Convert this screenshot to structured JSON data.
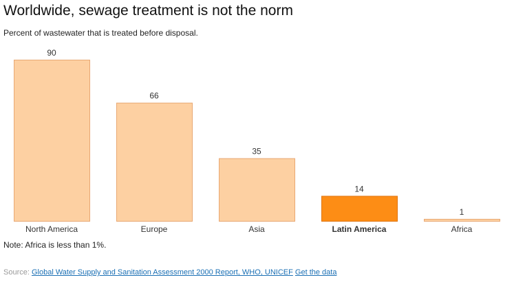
{
  "title": "Worldwide, sewage treatment is not the norm",
  "subtitle": "Percent of wastewater that is treated before disposal.",
  "note": "Note: Africa is less than 1%.",
  "source": {
    "prefix": "Source: ",
    "link_label": "Global Water Supply and Sanitation Assessment 2000 Report, WHO, UNICEF",
    "data_link_label": "Get the data"
  },
  "colors": {
    "bar_default": "#fdd0a2",
    "bar_default_stroke": "#e8a873",
    "bar_highlight": "#fd8d15",
    "bar_highlight_stroke": "#e07410",
    "link": "#1a6fb4"
  },
  "chart_data": {
    "type": "bar",
    "categories": [
      "North America",
      "Europe",
      "Asia",
      "Latin America",
      "Africa"
    ],
    "values": [
      90,
      66,
      35,
      14,
      1
    ],
    "value_labels": [
      "90",
      "66",
      "35",
      "14",
      "1"
    ],
    "highlight": "Latin America",
    "title": "Worldwide, sewage treatment is not the norm",
    "xlabel": "",
    "ylabel": "",
    "ylim": [
      0,
      90
    ],
    "grid": false,
    "legend": "none"
  }
}
